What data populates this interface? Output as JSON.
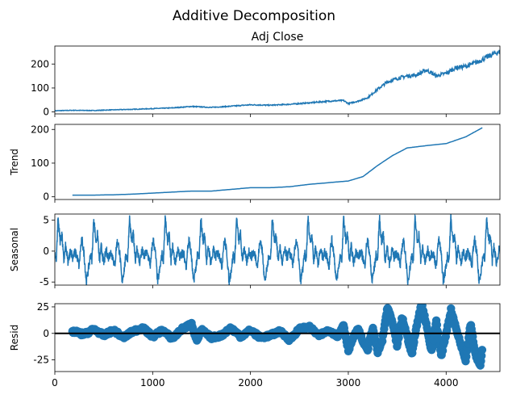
{
  "figure": {
    "title": "Additive Decomposition"
  },
  "colors": {
    "series": "#1f77b4",
    "axes": "#000000",
    "zero_line": "#000000"
  },
  "chart_data": [
    {
      "type": "line",
      "title": "Adj Close",
      "ylabel": "",
      "xlim": [
        0,
        4550
      ],
      "ylim": [
        -8,
        275
      ],
      "yticks": [
        0,
        100,
        200
      ],
      "xticks": [
        0,
        1000,
        2000,
        3000,
        4000
      ],
      "xtick_labels_shown": false,
      "series": [
        {
          "x": [
            0,
            200,
            400,
            600,
            800,
            1000,
            1200,
            1400,
            1600,
            1800,
            2000,
            2200,
            2400,
            2600,
            2800,
            2950,
            3000,
            3100,
            3200,
            3300,
            3400,
            3500,
            3600,
            3700,
            3800,
            3900,
            4000,
            4100,
            4200,
            4300,
            4400,
            4500,
            4550
          ],
          "y": [
            5,
            7,
            6,
            9,
            11,
            14,
            17,
            23,
            19,
            24,
            30,
            28,
            32,
            38,
            45,
            48,
            35,
            45,
            60,
            95,
            125,
            140,
            150,
            155,
            175,
            150,
            162,
            185,
            190,
            205,
            225,
            245,
            250
          ]
        }
      ]
    },
    {
      "type": "line",
      "title": "",
      "ylabel": "Trend",
      "xlim": [
        0,
        4550
      ],
      "ylim": [
        -8,
        215
      ],
      "yticks": [
        0,
        100,
        200
      ],
      "xticks": [
        0,
        1000,
        2000,
        3000,
        4000
      ],
      "xtick_labels_shown": false,
      "series": [
        {
          "x": [
            180,
            400,
            600,
            800,
            1000,
            1200,
            1400,
            1600,
            1800,
            2000,
            2200,
            2400,
            2600,
            2800,
            3000,
            3150,
            3300,
            3450,
            3600,
            3800,
            4000,
            4200,
            4370
          ],
          "y": [
            5,
            5,
            6,
            8,
            11,
            14,
            17,
            17,
            22,
            27,
            27,
            30,
            37,
            42,
            47,
            60,
            93,
            122,
            145,
            152,
            158,
            178,
            205
          ]
        }
      ]
    },
    {
      "type": "line",
      "title": "",
      "ylabel": "Seasonal",
      "xlim": [
        0,
        4550
      ],
      "ylim": [
        -5.5,
        6
      ],
      "yticks": [
        -5,
        0,
        5
      ],
      "xticks": [
        0,
        1000,
        2000,
        3000,
        4000
      ],
      "xtick_labels_shown": false,
      "period": 365,
      "pattern": {
        "phase": [
          0,
          0.04,
          0.09,
          0.15,
          0.2,
          0.25,
          0.3,
          0.37,
          0.44,
          0.5,
          0.56,
          0.62,
          0.68,
          0.72,
          0.76,
          0.82,
          0.88,
          0.94,
          1.0
        ],
        "value": [
          -0.5,
          -1.5,
          5.5,
          1.5,
          2.8,
          -1.8,
          0.8,
          -2.0,
          0.2,
          -1.0,
          -0.2,
          -0.8,
          -2.5,
          0.5,
          1.8,
          -0.5,
          -5.0,
          -3.0,
          -0.5
        ]
      }
    },
    {
      "type": "scatter",
      "title": "",
      "ylabel": "Resid",
      "xlim": [
        0,
        4550
      ],
      "ylim": [
        -36,
        28
      ],
      "yticks": [
        -25,
        0,
        25
      ],
      "xticks": [
        0,
        1000,
        2000,
        3000,
        4000
      ],
      "xtick_labels": [
        "0",
        "1000",
        "2000",
        "3000",
        "4000"
      ],
      "zero_line": true,
      "series": [
        {
          "x": [
            180,
            300,
            400,
            500,
            600,
            700,
            800,
            900,
            1000,
            1100,
            1200,
            1300,
            1400,
            1450,
            1500,
            1600,
            1700,
            1800,
            1900,
            2000,
            2100,
            2200,
            2300,
            2400,
            2500,
            2600,
            2700,
            2800,
            2900,
            2950,
            3000,
            3050,
            3100,
            3150,
            3200,
            3250,
            3300,
            3350,
            3400,
            3450,
            3500,
            3550,
            3600,
            3650,
            3700,
            3750,
            3800,
            3850,
            3900,
            3950,
            4000,
            4050,
            4100,
            4150,
            4200,
            4250,
            4300,
            4350,
            4370
          ],
          "y": [
            2,
            -1,
            4,
            -2,
            3,
            -4,
            2,
            5,
            -3,
            3,
            -5,
            4,
            9,
            -7,
            3,
            -4,
            -2,
            5,
            -3,
            3,
            -4,
            -2,
            2,
            -6,
            4,
            6,
            -2,
            3,
            -3,
            9,
            -16,
            -4,
            4,
            -8,
            -15,
            6,
            -18,
            -6,
            25,
            10,
            -12,
            15,
            -2,
            -20,
            8,
            28,
            8,
            -18,
            12,
            -22,
            0,
            22,
            5,
            -10,
            -25,
            10,
            -20,
            -30,
            -15
          ]
        }
      ]
    }
  ]
}
